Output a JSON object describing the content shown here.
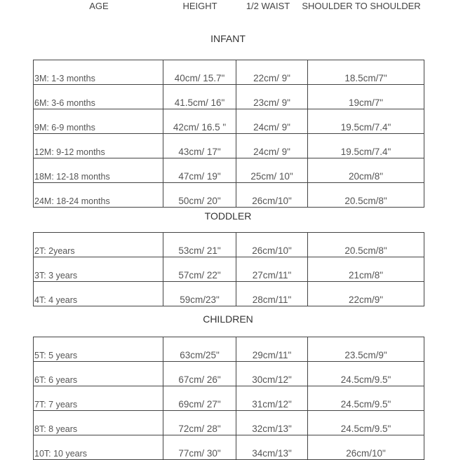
{
  "headers": {
    "age": "AGE",
    "height": "HEIGHT",
    "waist": "1/2 WAIST",
    "shoulder": "SHOULDER TO SHOULDER"
  },
  "sections": [
    {
      "title": "INFANT",
      "rows": [
        [
          "3M: 1-3 months",
          "40cm/ 15.7\"",
          "22cm/ 9\"",
          "18.5cm/7\""
        ],
        [
          "6M: 3-6 months",
          "41.5cm/ 16\"",
          "23cm/ 9\"",
          "19cm/7\""
        ],
        [
          "9M: 6-9 months",
          "42cm/ 16.5 \"",
          "24cm/ 9\"",
          "19.5cm/7.4\""
        ],
        [
          "12M: 9-12 months",
          "43cm/ 17\"",
          "24cm/ 9\"",
          "19.5cm/7.4\""
        ],
        [
          "18M: 12-18 months",
          "47cm/ 19\"",
          "25cm/ 10\"",
          "20cm/8\""
        ],
        [
          "24M: 18-24 months",
          "50cm/ 20\"",
          "26cm/10\"",
          "20.5cm/8\""
        ]
      ]
    },
    {
      "title": "TODDLER",
      "rows": [
        [
          "2T: 2years",
          "53cm/ 21\"",
          "26cm/10\"",
          "20.5cm/8\""
        ],
        [
          "3T: 3 years",
          "57cm/ 22\"",
          "27cm/11\"",
          "21cm/8\""
        ],
        [
          "4T: 4 years",
          "59cm/23\"",
          "28cm/11\"",
          "22cm/9\""
        ]
      ]
    },
    {
      "title": "CHILDREN",
      "rows": [
        [
          "5T: 5 years",
          "63cm/25\"",
          "29cm/11\"",
          "23.5cm/9\""
        ],
        [
          "6T: 6 years",
          "67cm/ 26\"",
          "30cm/12\"",
          "24.5cm/9.5\""
        ],
        [
          "7T: 7 years",
          "69cm/ 27\"",
          "31cm/12\"",
          "24.5cm/9.5\""
        ],
        [
          "8T: 8 years",
          "72cm/ 28\"",
          "32cm/13\"",
          "24.5cm/9.5\""
        ],
        [
          "10T: 10 years",
          "77cm/ 30\"",
          "34cm/13\"",
          "26cm/10\""
        ]
      ]
    }
  ]
}
